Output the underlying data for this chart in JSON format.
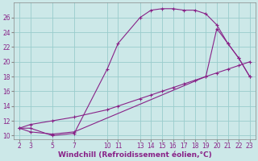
{
  "xlabel": "Windchill (Refroidissement éolien,°C)",
  "bg_color": "#cce8e8",
  "grid_color": "#99cccc",
  "line_color": "#882288",
  "line1_x": [
    2,
    3,
    5,
    7,
    10,
    11,
    13,
    14,
    15,
    16,
    17,
    18,
    19,
    20,
    21,
    22,
    23
  ],
  "line1_y": [
    11,
    11,
    10,
    10.3,
    19.0,
    22.5,
    26.0,
    27.0,
    27.2,
    27.2,
    27.0,
    27.0,
    26.5,
    25.0,
    22.5,
    20.5,
    18.0
  ],
  "line2_x": [
    2,
    3,
    5,
    7,
    10,
    11,
    13,
    14,
    15,
    16,
    17,
    18,
    19,
    20,
    21,
    22,
    23
  ],
  "line2_y": [
    11,
    11.5,
    12.0,
    12.5,
    13.5,
    14.0,
    15.0,
    15.5,
    16.0,
    16.5,
    17.0,
    17.5,
    18.0,
    18.5,
    19.0,
    19.5,
    20.0
  ],
  "line3_x": [
    2,
    3,
    5,
    7,
    19,
    20,
    21,
    22,
    23
  ],
  "line3_y": [
    11,
    10.5,
    10.2,
    10.5,
    18.0,
    24.5,
    22.5,
    20.5,
    18.0
  ],
  "xlim": [
    1.5,
    23.5
  ],
  "ylim": [
    9.5,
    28
  ],
  "xticks": [
    2,
    3,
    5,
    7,
    10,
    11,
    13,
    14,
    15,
    16,
    17,
    18,
    19,
    20,
    21,
    22,
    23
  ],
  "yticks": [
    10,
    12,
    14,
    16,
    18,
    20,
    22,
    24,
    26
  ],
  "tick_fontsize": 5.5,
  "xlabel_fontsize": 6.5
}
